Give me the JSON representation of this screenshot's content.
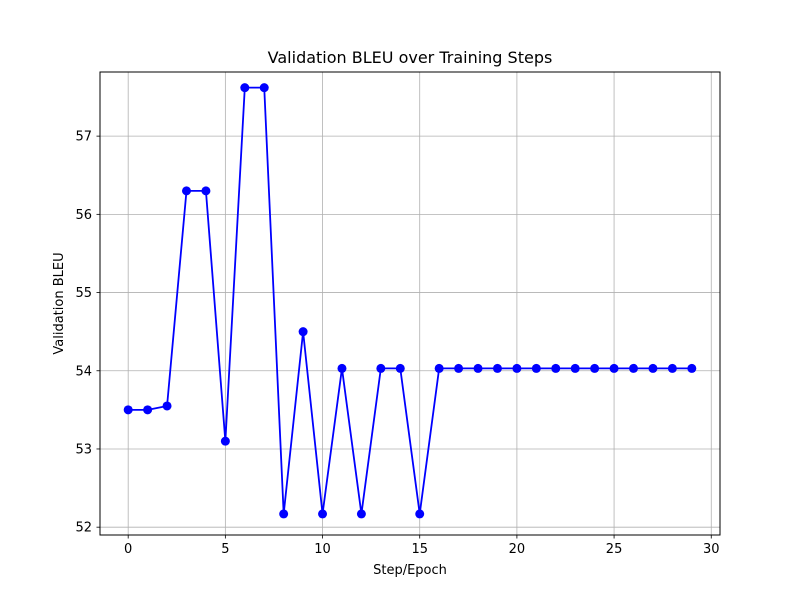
{
  "chart_data": {
    "type": "line",
    "title": "Validation BLEU over Training Steps",
    "xlabel": "Step/Epoch",
    "ylabel": "Validation BLEU",
    "xlim": [
      -1.45,
      30.45
    ],
    "ylim": [
      51.9,
      57.82
    ],
    "x_ticks": [
      0,
      5,
      10,
      15,
      20,
      25,
      30
    ],
    "y_ticks": [
      52,
      53,
      54,
      55,
      56,
      57
    ],
    "grid": true,
    "line_color": "#0000ff",
    "marker": "circle",
    "series": [
      {
        "x": [
          0,
          1,
          2,
          3,
          4,
          5,
          6,
          7,
          8,
          9,
          10,
          11,
          12,
          13,
          14,
          15,
          16,
          17,
          18,
          19,
          20,
          21,
          22,
          23,
          24,
          25,
          26,
          27,
          28,
          29
        ],
        "values": [
          53.5,
          53.5,
          53.55,
          56.3,
          56.3,
          53.1,
          57.62,
          57.62,
          52.17,
          54.5,
          52.17,
          54.03,
          52.17,
          54.03,
          54.03,
          52.17,
          54.03,
          54.03,
          54.03,
          54.03,
          54.03,
          54.03,
          54.03,
          54.03,
          54.03,
          54.03,
          54.03,
          54.03,
          54.03,
          54.03
        ]
      }
    ]
  }
}
